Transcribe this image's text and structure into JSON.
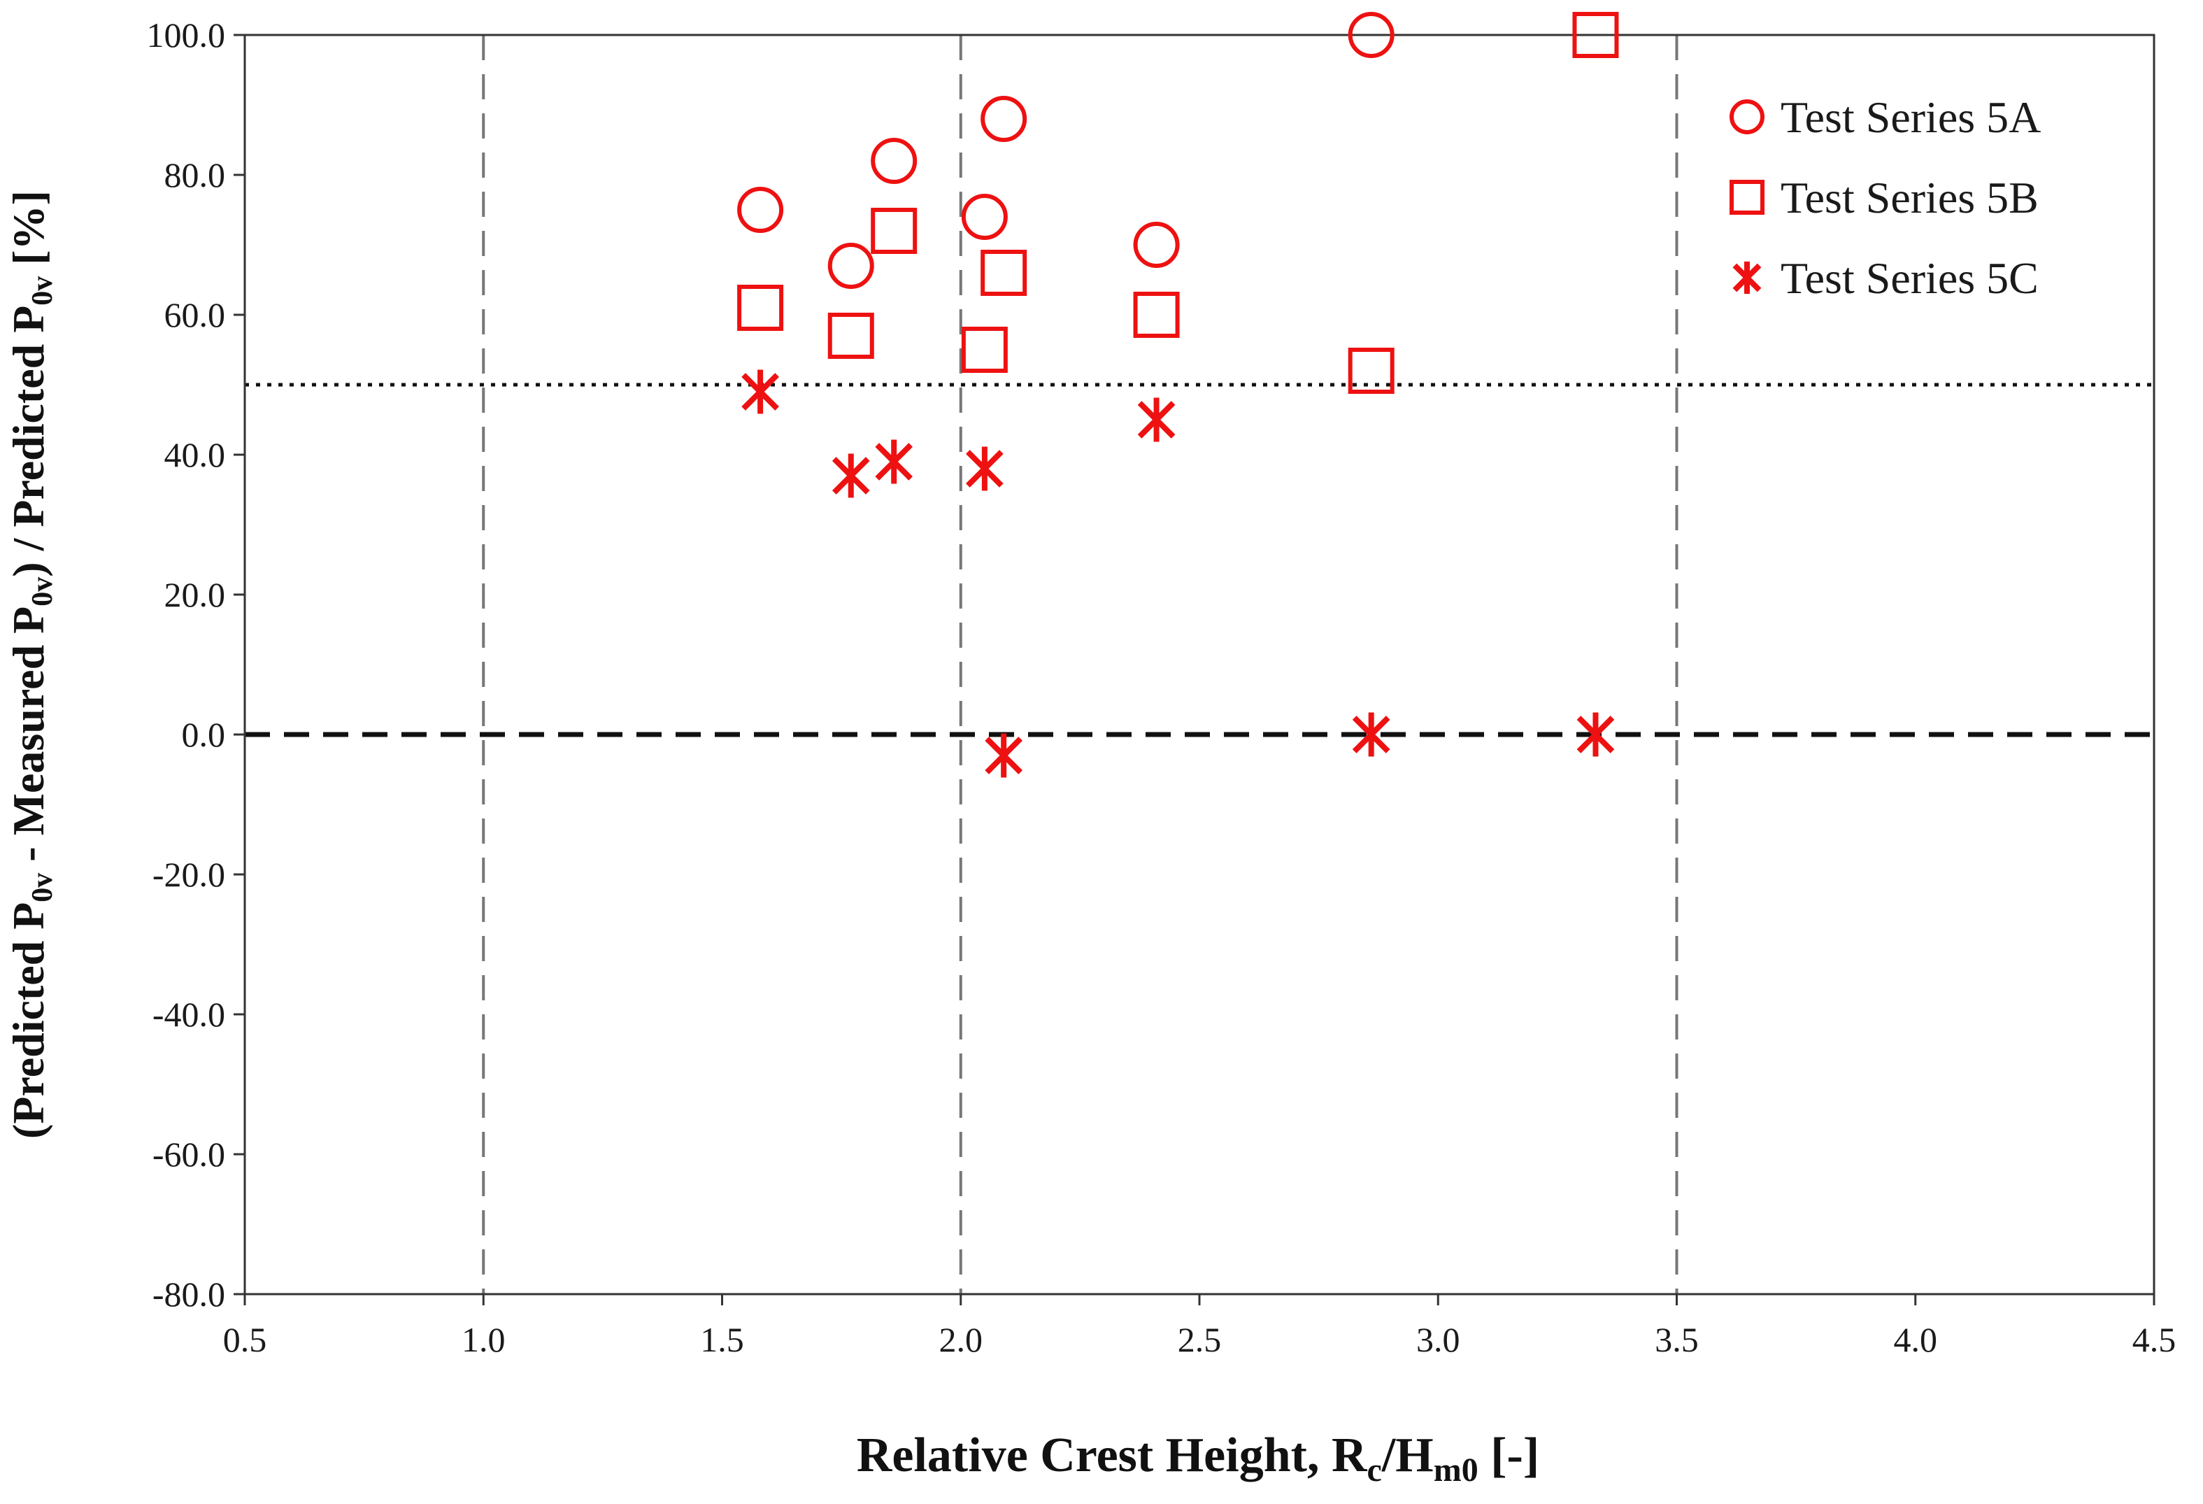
{
  "chart_data": {
    "type": "scatter",
    "xlabel": {
      "main": "Relative Crest Height, R",
      "sub1": "c",
      "mid": "/H",
      "sub2": "m0",
      "tail": " [-]"
    },
    "ylabel": {
      "p1": "(Predicted P",
      "s1": "0v",
      "p2": " - Measured P",
      "s2": "0v",
      "p3": ") / Predicted P",
      "s3": "0v",
      "p4": " [%]"
    },
    "xlim": [
      0.5,
      4.5
    ],
    "ylim": [
      -80,
      100
    ],
    "x_ticks": [
      "0.5",
      "1.0",
      "1.5",
      "2.0",
      "2.5",
      "3.0",
      "3.5",
      "4.0",
      "4.5"
    ],
    "y_ticks": [
      "-80.0",
      "-60.0",
      "-40.0",
      "-20.0",
      "0.0",
      "20.0",
      "40.0",
      "60.0",
      "80.0",
      "100.0"
    ],
    "vertical_reference_lines_x": [
      1.0,
      2.0,
      3.5
    ],
    "horizontal_reference_lines": [
      {
        "y": 50,
        "style": "dotted"
      },
      {
        "y": 0,
        "style": "dashed"
      }
    ],
    "legend_position": "top-right",
    "series": [
      {
        "name": "Test Series 5A",
        "marker": "circle",
        "points": [
          {
            "x": 1.58,
            "y": 75
          },
          {
            "x": 1.77,
            "y": 67
          },
          {
            "x": 1.86,
            "y": 82
          },
          {
            "x": 2.05,
            "y": 74
          },
          {
            "x": 2.09,
            "y": 88
          },
          {
            "x": 2.41,
            "y": 70
          },
          {
            "x": 2.86,
            "y": 100
          }
        ]
      },
      {
        "name": "Test Series 5B",
        "marker": "square",
        "points": [
          {
            "x": 1.58,
            "y": 61
          },
          {
            "x": 1.77,
            "y": 57
          },
          {
            "x": 1.86,
            "y": 72
          },
          {
            "x": 2.05,
            "y": 55
          },
          {
            "x": 2.09,
            "y": 66
          },
          {
            "x": 2.41,
            "y": 60
          },
          {
            "x": 2.86,
            "y": 52
          },
          {
            "x": 3.33,
            "y": 100
          }
        ]
      },
      {
        "name": "Test Series 5C",
        "marker": "star",
        "points": [
          {
            "x": 1.58,
            "y": 49
          },
          {
            "x": 1.77,
            "y": 37
          },
          {
            "x": 1.86,
            "y": 39
          },
          {
            "x": 2.05,
            "y": 38
          },
          {
            "x": 2.09,
            "y": -3
          },
          {
            "x": 2.41,
            "y": 45
          },
          {
            "x": 2.86,
            "y": 0
          },
          {
            "x": 3.33,
            "y": 0
          }
        ]
      }
    ],
    "colors": {
      "markers": "#ee1111",
      "axis": "#333333",
      "grid": "#777777",
      "reference": "#111111"
    }
  }
}
